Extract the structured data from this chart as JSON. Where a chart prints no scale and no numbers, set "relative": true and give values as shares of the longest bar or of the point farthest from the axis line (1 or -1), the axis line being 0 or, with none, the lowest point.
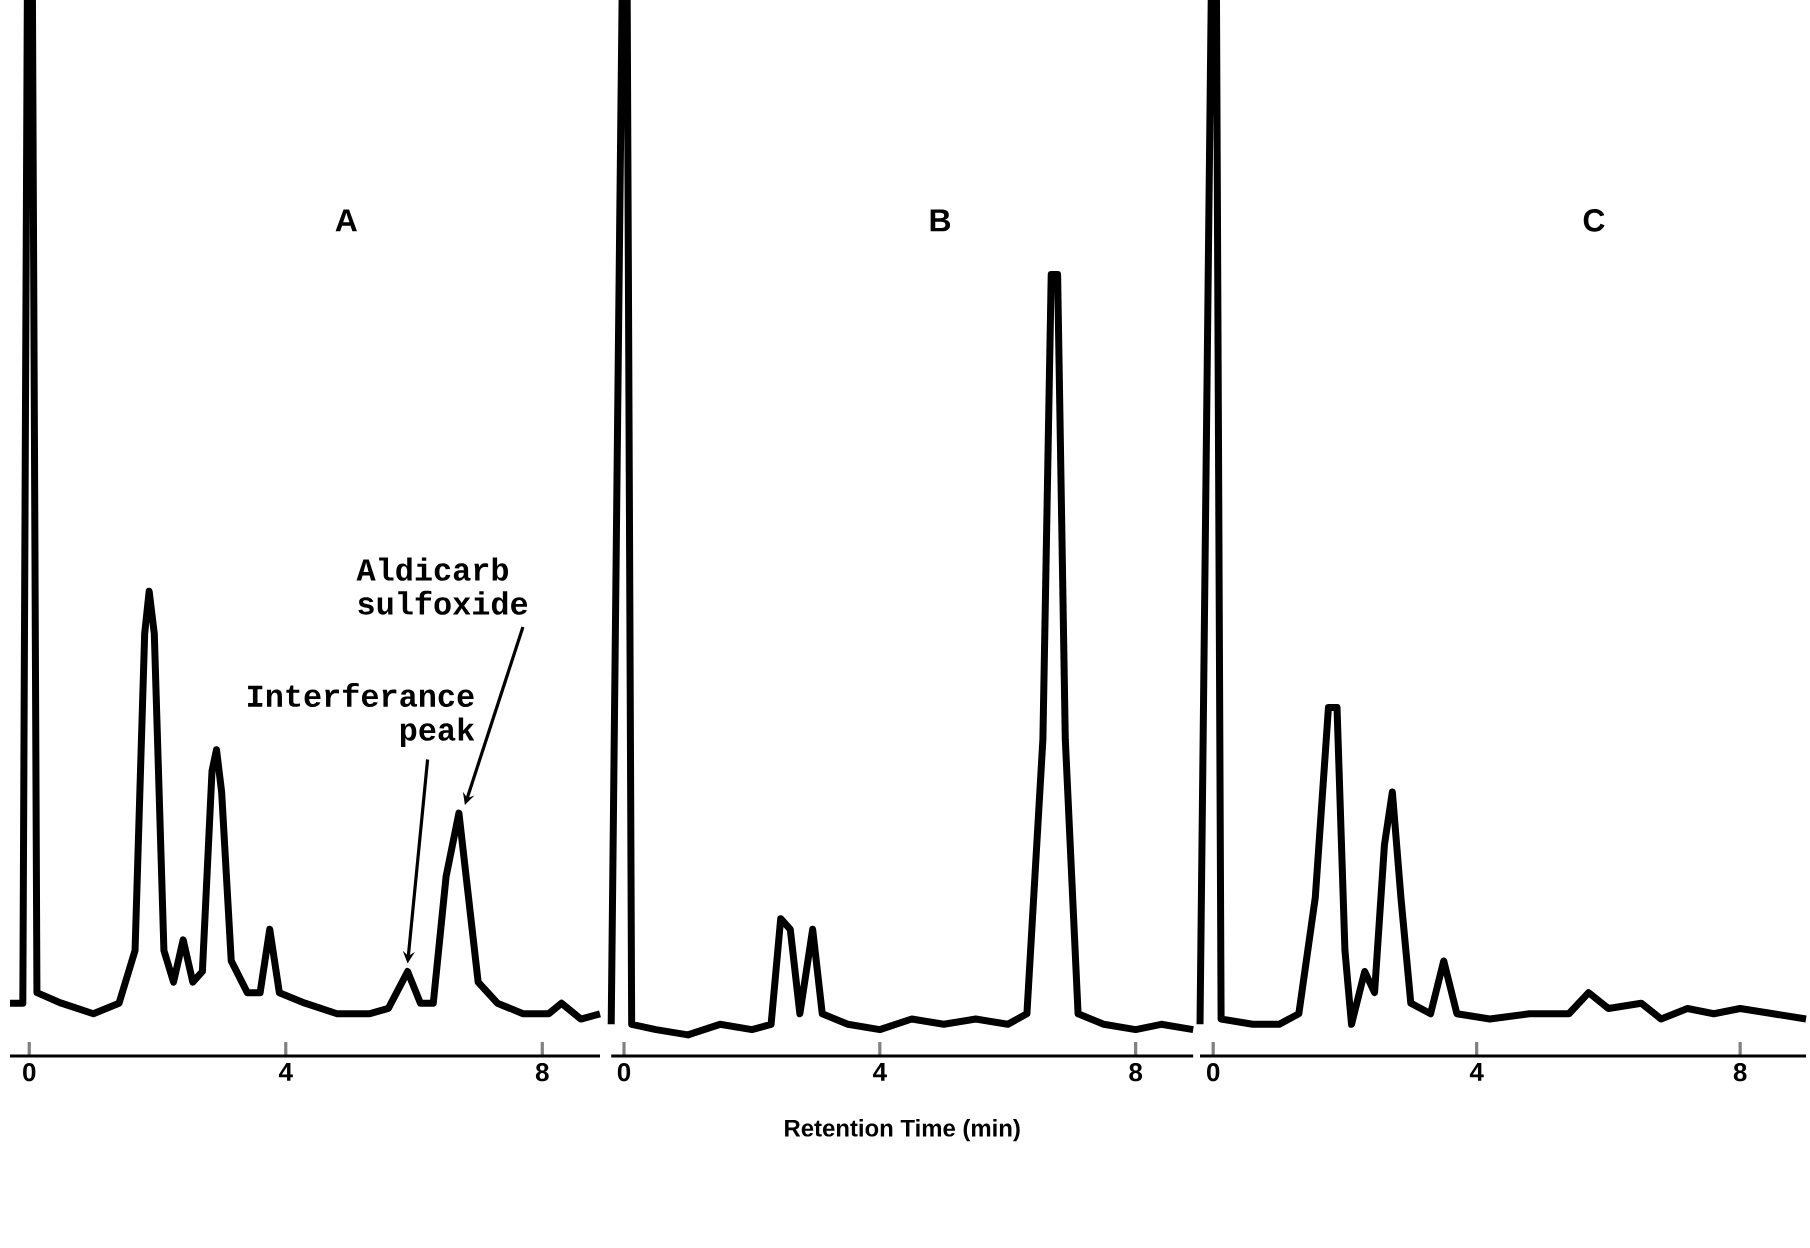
{
  "chart_data": [
    {
      "type": "line",
      "relative": true,
      "title": "A",
      "color": "#000000",
      "x": [
        -0.3,
        -0.1,
        -0.03,
        0.05,
        0.12,
        0.5,
        1.0,
        1.4,
        1.65,
        1.8,
        1.87,
        1.95,
        2.1,
        2.25,
        2.4,
        2.55,
        2.7,
        2.85,
        2.92,
        3.0,
        3.15,
        3.4,
        3.6,
        3.75,
        3.9,
        4.3,
        4.8,
        5.3,
        5.6,
        5.9,
        6.1,
        6.3,
        6.5,
        6.7,
        6.85,
        7.0,
        7.3,
        7.7,
        8.1,
        8.3,
        8.6,
        8.9
      ],
      "values": [
        0.05,
        0.05,
        1.0,
        1.0,
        0.06,
        0.05,
        0.04,
        0.05,
        0.1,
        0.4,
        0.44,
        0.4,
        0.1,
        0.07,
        0.11,
        0.07,
        0.08,
        0.27,
        0.29,
        0.25,
        0.09,
        0.06,
        0.06,
        0.12,
        0.06,
        0.05,
        0.04,
        0.04,
        0.045,
        0.08,
        0.05,
        0.05,
        0.17,
        0.23,
        0.15,
        0.07,
        0.05,
        0.04,
        0.04,
        0.05,
        0.035,
        0.04
      ],
      "xlim": [
        -0.3,
        8.9
      ],
      "xticks": [
        0,
        4,
        8
      ],
      "annotations": [
        {
          "text": "Aldicarb sulfoxide",
          "x": 6.7,
          "y": 0.23
        },
        {
          "text": "Interferance peak",
          "x": 5.9,
          "y": 0.08
        }
      ]
    },
    {
      "type": "line",
      "relative": true,
      "title": "B",
      "color": "#000000",
      "xlabel": "Retention Time (min)",
      "x": [
        -0.2,
        -0.03,
        0.05,
        0.12,
        0.5,
        1.0,
        1.5,
        2.0,
        2.3,
        2.45,
        2.6,
        2.75,
        2.95,
        3.1,
        3.5,
        4.0,
        4.5,
        5.0,
        5.5,
        6.0,
        6.3,
        6.55,
        6.68,
        6.78,
        6.9,
        7.1,
        7.5,
        8.0,
        8.4,
        8.9
      ],
      "values": [
        0.03,
        1.0,
        1.0,
        0.03,
        0.025,
        0.02,
        0.03,
        0.025,
        0.03,
        0.13,
        0.12,
        0.04,
        0.12,
        0.04,
        0.03,
        0.025,
        0.035,
        0.03,
        0.035,
        0.03,
        0.04,
        0.3,
        0.74,
        0.74,
        0.3,
        0.04,
        0.03,
        0.025,
        0.03,
        0.025
      ],
      "xlim": [
        -0.2,
        8.9
      ],
      "xticks": [
        0,
        4,
        8
      ]
    },
    {
      "type": "line",
      "relative": true,
      "title": "C",
      "color": "#000000",
      "x": [
        -0.2,
        -0.03,
        0.05,
        0.12,
        0.6,
        1.0,
        1.3,
        1.55,
        1.75,
        1.88,
        2.0,
        2.1,
        2.3,
        2.45,
        2.6,
        2.72,
        2.85,
        3.0,
        3.3,
        3.5,
        3.7,
        4.2,
        4.8,
        5.4,
        5.7,
        6.0,
        6.5,
        6.8,
        7.2,
        7.6,
        8.0,
        8.5,
        9.0
      ],
      "values": [
        0.03,
        1.0,
        1.0,
        0.035,
        0.03,
        0.03,
        0.04,
        0.15,
        0.33,
        0.33,
        0.1,
        0.03,
        0.08,
        0.06,
        0.2,
        0.25,
        0.15,
        0.05,
        0.04,
        0.09,
        0.04,
        0.035,
        0.04,
        0.04,
        0.06,
        0.045,
        0.05,
        0.035,
        0.045,
        0.04,
        0.045,
        0.04,
        0.035
      ],
      "xlim": [
        -0.2,
        9.0
      ],
      "xticks": [
        0,
        4,
        8
      ]
    }
  ]
}
